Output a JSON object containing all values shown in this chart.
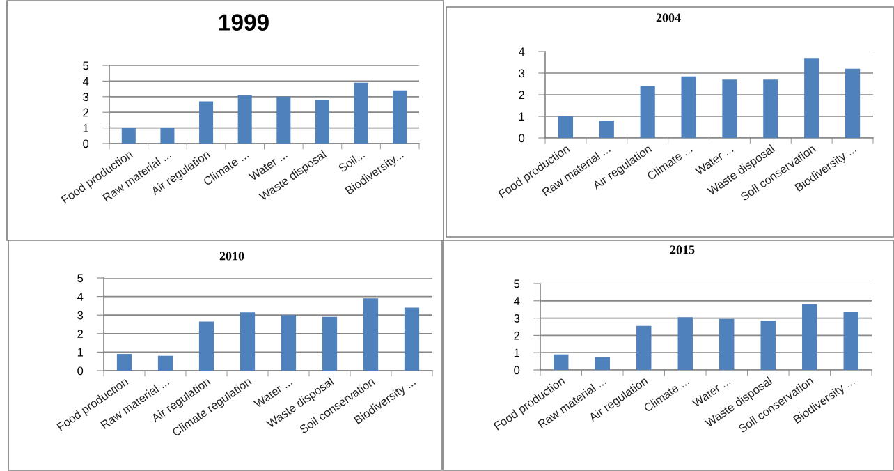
{
  "chart_data": [
    {
      "type": "bar",
      "title": "1999",
      "categories": [
        "Food production",
        "Raw material ...",
        "Air regulation",
        "Climate ...",
        "Water ...",
        "Waste disposal",
        "Soil...",
        "Biodiversity..."
      ],
      "values": [
        1.0,
        1.0,
        2.7,
        3.1,
        3.0,
        2.8,
        3.9,
        3.4
      ],
      "color": "#4f81bd",
      "ylim": [
        0,
        5
      ],
      "yticks": [
        0,
        1,
        2,
        3,
        4,
        5
      ],
      "grid": "y"
    },
    {
      "type": "bar",
      "title": "2004",
      "categories": [
        "Food production",
        "Raw material ...",
        "Air regulation",
        "Climate ...",
        "Water ...",
        "Waste disposal",
        "Soil conservation",
        "Biodiversity ..."
      ],
      "values": [
        1.0,
        0.8,
        2.4,
        2.85,
        2.7,
        2.7,
        3.7,
        3.2
      ],
      "color": "#4f81bd",
      "ylim": [
        0,
        4
      ],
      "yticks": [
        0,
        1,
        2,
        3,
        4
      ],
      "grid": "y"
    },
    {
      "type": "bar",
      "title": "2010",
      "categories": [
        "Food production",
        "Raw material ...",
        "Air regulation",
        "Climate regulation",
        "Water ...",
        "Waste disposal",
        "Soil conservation",
        "Biodiversity ..."
      ],
      "values": [
        0.9,
        0.8,
        2.65,
        3.15,
        3.0,
        2.9,
        3.9,
        3.4
      ],
      "color": "#4f81bd",
      "ylim": [
        0,
        5
      ],
      "yticks": [
        0,
        1,
        2,
        3,
        4,
        5
      ],
      "grid": "y"
    },
    {
      "type": "bar",
      "title": "2015",
      "categories": [
        "Food production",
        "Raw material ...",
        "Air regulation",
        "Climate ...",
        "Water ...",
        "Waste disposal",
        "Soil conservation",
        "Biodiversity ..."
      ],
      "values": [
        0.9,
        0.75,
        2.55,
        3.05,
        2.95,
        2.85,
        3.8,
        3.35
      ],
      "color": "#4f81bd",
      "ylim": [
        0,
        5
      ],
      "yticks": [
        0,
        1,
        2,
        3,
        4,
        5
      ],
      "grid": "y"
    }
  ]
}
